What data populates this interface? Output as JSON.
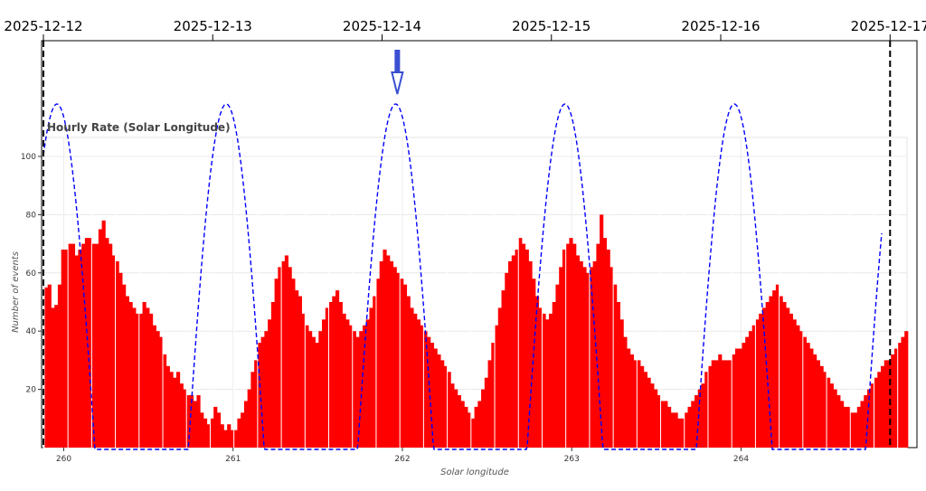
{
  "chart_data": {
    "type": "bar",
    "title": "Hourly Rate (Solar Longitude)",
    "xlabel": "Solar longitude",
    "ylabel": "Number of events",
    "xlim": [
      259.88,
      264.98
    ],
    "ylim": [
      0,
      108
    ],
    "x_ticks": [
      260,
      261,
      262,
      263,
      264
    ],
    "y_ticks": [
      20,
      40,
      60,
      80,
      100
    ],
    "grid": true,
    "bar_color": "#ff0000",
    "curve_color": "#0000ff",
    "marker_color": "#3a4fd1",
    "top_axis": {
      "dates": [
        "2025-12-12",
        "2025-12-13",
        "2025-12-14",
        "2025-12-15",
        "2025-12-16",
        "2025-12-17"
      ],
      "date_positions": [
        259.88,
        260.88,
        261.88,
        262.88,
        263.88,
        264.88
      ]
    },
    "dashed_markers": [
      259.88,
      264.88
    ],
    "arrow_marker_x": 261.97,
    "curve": {
      "peak": 118,
      "period": 1.0,
      "first_peak": 259.96
    },
    "bar_x_start": 259.885,
    "bar_x_step": 0.02,
    "bar_values": [
      55,
      56,
      48,
      49,
      56,
      68,
      68,
      70,
      70,
      66,
      68,
      70,
      72,
      72,
      70,
      70,
      75,
      78,
      72,
      70,
      66,
      64,
      60,
      56,
      52,
      50,
      48,
      46,
      46,
      50,
      48,
      46,
      42,
      40,
      38,
      32,
      28,
      26,
      24,
      26,
      22,
      20,
      18,
      18,
      16,
      18,
      12,
      10,
      8,
      10,
      14,
      12,
      8,
      6,
      8,
      6,
      6,
      10,
      12,
      16,
      20,
      26,
      30,
      36,
      38,
      40,
      44,
      50,
      58,
      62,
      64,
      66,
      62,
      58,
      54,
      52,
      46,
      42,
      40,
      38,
      36,
      40,
      44,
      48,
      50,
      52,
      54,
      50,
      46,
      44,
      42,
      40,
      38,
      40,
      42,
      44,
      48,
      52,
      58,
      64,
      68,
      66,
      64,
      62,
      60,
      58,
      56,
      52,
      48,
      46,
      44,
      42,
      40,
      38,
      36,
      34,
      32,
      30,
      28,
      26,
      22,
      20,
      18,
      16,
      14,
      12,
      10,
      14,
      16,
      20,
      24,
      30,
      36,
      42,
      48,
      54,
      60,
      64,
      66,
      68,
      72,
      70,
      68,
      64,
      58,
      52,
      48,
      46,
      44,
      46,
      50,
      56,
      62,
      68,
      70,
      72,
      70,
      66,
      64,
      62,
      60,
      62,
      64,
      70,
      80,
      72,
      68,
      62,
      56,
      50,
      44,
      38,
      34,
      32,
      30,
      30,
      28,
      26,
      24,
      22,
      20,
      18,
      16,
      16,
      14,
      12,
      12,
      10,
      10,
      12,
      14,
      16,
      18,
      20,
      22,
      26,
      28,
      30,
      30,
      32,
      30,
      30,
      30,
      32,
      34,
      34,
      36,
      38,
      40,
      42,
      44,
      46,
      48,
      50,
      52,
      54,
      56,
      52,
      50,
      48,
      46,
      44,
      42,
      40,
      38,
      36,
      34,
      32,
      30,
      28,
      26,
      24,
      22,
      20,
      18,
      16,
      14,
      14,
      12,
      12,
      14,
      16,
      18,
      20,
      22,
      24,
      26,
      28,
      30,
      30,
      32,
      34,
      36,
      38,
      40,
      44,
      50,
      58,
      64,
      62,
      58,
      54,
      50,
      46,
      42,
      38,
      34,
      30,
      26,
      22,
      20,
      18,
      16,
      14,
      12,
      12,
      16,
      18,
      20,
      22,
      26,
      28,
      30,
      34,
      36,
      22,
      20,
      18,
      16,
      18,
      20,
      22,
      24,
      26,
      28,
      30,
      32,
      34
    ]
  }
}
